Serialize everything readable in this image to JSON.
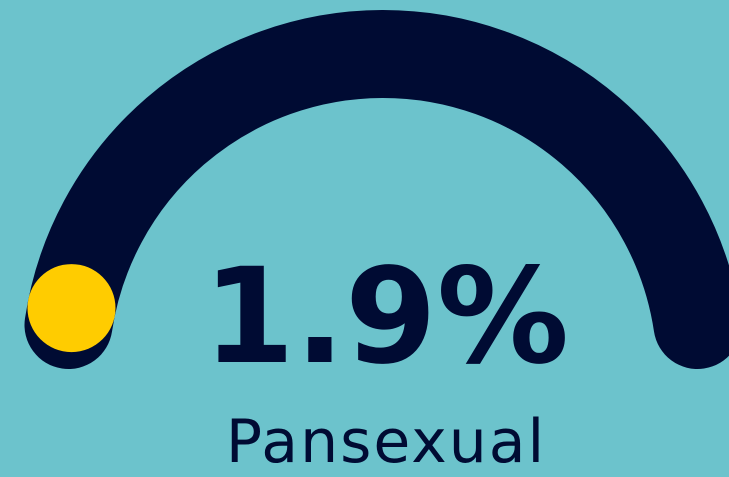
{
  "chart_data": {
    "type": "gauge",
    "categories": [
      "Pansexual"
    ],
    "values": [
      1.9
    ],
    "value_labels": [
      "1.9%"
    ],
    "ylim": [
      0,
      100
    ],
    "color": "#ffcc00",
    "track_color": "#000b33"
  }
}
